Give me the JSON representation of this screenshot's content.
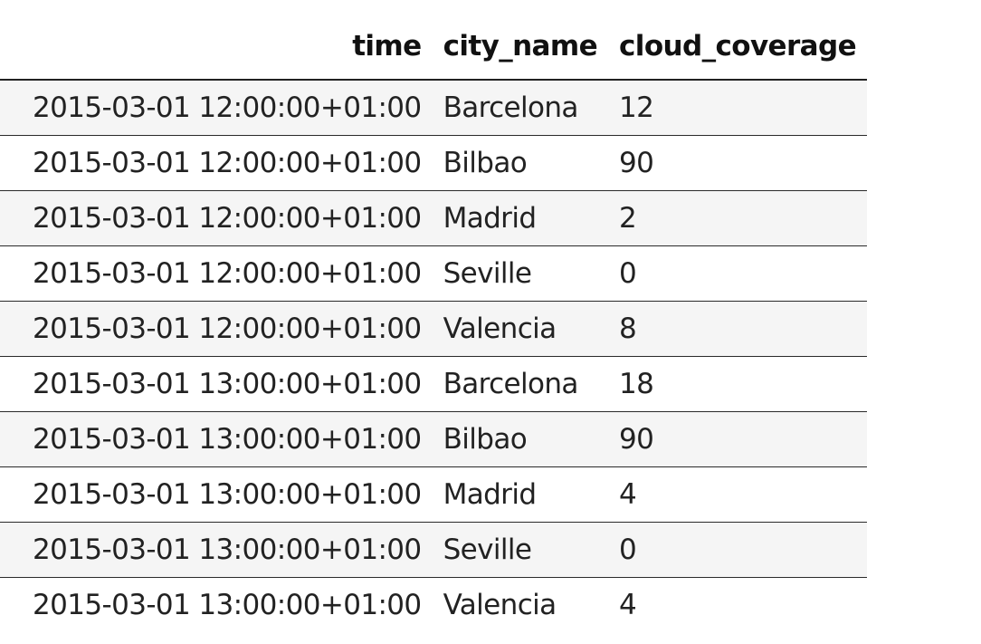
{
  "table": {
    "columns": {
      "time": "time",
      "city_name": "city_name",
      "cloud_coverage": "cloud_coverage"
    },
    "rows": [
      {
        "time": "2015-03-01 12:00:00+01:00",
        "city_name": "Barcelona",
        "cloud_coverage": "12"
      },
      {
        "time": "2015-03-01 12:00:00+01:00",
        "city_name": "Bilbao",
        "cloud_coverage": "90"
      },
      {
        "time": "2015-03-01 12:00:00+01:00",
        "city_name": "Madrid",
        "cloud_coverage": "2"
      },
      {
        "time": "2015-03-01 12:00:00+01:00",
        "city_name": "Seville",
        "cloud_coverage": "0"
      },
      {
        "time": "2015-03-01 12:00:00+01:00",
        "city_name": "Valencia",
        "cloud_coverage": "8"
      },
      {
        "time": "2015-03-01 13:00:00+01:00",
        "city_name": "Barcelona",
        "cloud_coverage": "18"
      },
      {
        "time": "2015-03-01 13:00:00+01:00",
        "city_name": "Bilbao",
        "cloud_coverage": "90"
      },
      {
        "time": "2015-03-01 13:00:00+01:00",
        "city_name": "Madrid",
        "cloud_coverage": "4"
      },
      {
        "time": "2015-03-01 13:00:00+01:00",
        "city_name": "Seville",
        "cloud_coverage": "0"
      },
      {
        "time": "2015-03-01 13:00:00+01:00",
        "city_name": "Valencia",
        "cloud_coverage": "4"
      }
    ]
  },
  "colors": {
    "text": "#222222",
    "stripe": "#f5f5f5",
    "rule": "#222222",
    "background": "#ffffff"
  }
}
